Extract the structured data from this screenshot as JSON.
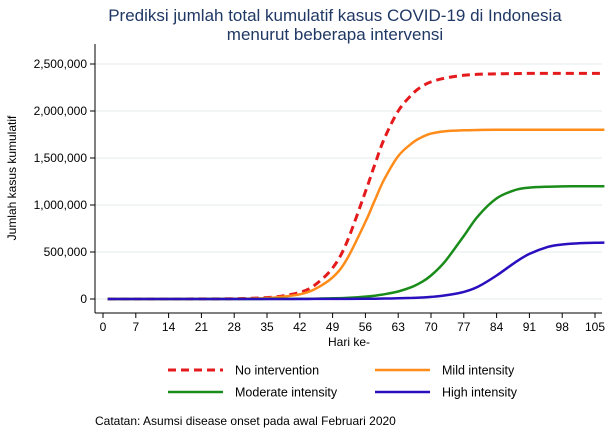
{
  "chart_data": {
    "type": "line",
    "title_line1": "Prediksi jumlah total kumulatif kasus COVID-19 di Indonesia",
    "title_line2": "menurut beberapa intervensi",
    "xlabel": "Hari ke-",
    "ylabel": "Jumlah kasus kumulatif",
    "xlim": [
      0,
      108
    ],
    "ylim": [
      0,
      2600000
    ],
    "x_ticks": [
      0,
      7,
      14,
      21,
      28,
      35,
      42,
      49,
      56,
      63,
      70,
      77,
      84,
      91,
      98,
      105
    ],
    "y_ticks": [
      0,
      500000,
      1000000,
      1500000,
      2000000,
      2500000
    ],
    "y_tick_labels": [
      "0",
      "500,000",
      "1,000,000",
      "1,500,000",
      "2,000,000",
      "2,500,000"
    ],
    "grid": "horizontal",
    "legend_position": "bottom",
    "x": [
      1,
      7,
      14,
      21,
      28,
      32,
      35,
      38,
      42,
      45,
      49,
      52,
      56,
      58,
      60,
      63,
      66,
      68,
      70,
      73,
      77,
      80,
      84,
      88,
      91,
      95,
      98,
      102,
      105,
      107
    ],
    "series": [
      {
        "name": "No intervention",
        "color": "#e41a1c",
        "dash": true,
        "values": [
          0,
          100,
          300,
          1000,
          3000,
          8000,
          15000,
          30000,
          70000,
          140000,
          330000,
          600000,
          1140000,
          1430000,
          1700000,
          2000000,
          2180000,
          2260000,
          2310000,
          2350000,
          2380000,
          2390000,
          2395000,
          2398000,
          2400000,
          2400000,
          2400000,
          2400000,
          2400000,
          2400000
        ]
      },
      {
        "name": "Mild intensity",
        "color": "#ff8c1a",
        "dash": false,
        "values": [
          0,
          100,
          200,
          700,
          2000,
          5000,
          10000,
          22000,
          50000,
          100000,
          230000,
          420000,
          820000,
          1050000,
          1270000,
          1520000,
          1660000,
          1720000,
          1760000,
          1785000,
          1795000,
          1798000,
          1800000,
          1800000,
          1800000,
          1800000,
          1800000,
          1800000,
          1800000,
          1800000
        ]
      },
      {
        "name": "Moderate intensity",
        "color": "#1a8c1a",
        "dash": false,
        "values": [
          0,
          0,
          0,
          100,
          200,
          400,
          600,
          1000,
          2000,
          3500,
          7000,
          12000,
          25000,
          35000,
          50000,
          80000,
          130000,
          180000,
          250000,
          400000,
          670000,
          880000,
          1070000,
          1160000,
          1185000,
          1195000,
          1198000,
          1200000,
          1200000,
          1200000
        ]
      },
      {
        "name": "High intensity",
        "color": "#2a0fbf",
        "dash": false,
        "values": [
          0,
          0,
          0,
          0,
          0,
          100,
          150,
          250,
          400,
          600,
          1000,
          1500,
          2500,
          3500,
          5000,
          8000,
          12000,
          16000,
          22000,
          38000,
          75000,
          130000,
          250000,
          390000,
          480000,
          555000,
          580000,
          595000,
          598000,
          600000
        ]
      }
    ]
  },
  "footnote": "Catatan: Asumsi disease onset pada awal Februari 2020"
}
